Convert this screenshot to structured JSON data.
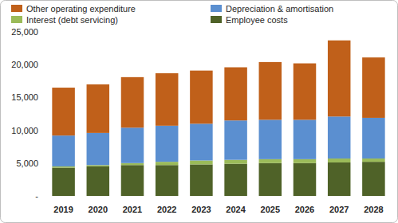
{
  "chart_data": {
    "type": "bar",
    "stacked": true,
    "grid": false,
    "legend": "top",
    "categories": [
      "2019",
      "2020",
      "2021",
      "2022",
      "2023",
      "2024",
      "2025",
      "2026",
      "2027",
      "2028"
    ],
    "series": [
      {
        "name": "Employee costs",
        "color": "#4f6228",
        "values": [
          4300,
          4500,
          4700,
          4700,
          4800,
          4900,
          5000,
          5000,
          5100,
          5200
        ]
      },
      {
        "name": "Interest (debt servicing)",
        "color": "#9bbb59",
        "values": [
          200,
          200,
          300,
          500,
          600,
          600,
          600,
          600,
          600,
          500
        ]
      },
      {
        "name": "Depreciation & amortisation",
        "color": "#5b8fd0",
        "values": [
          4700,
          4900,
          5400,
          5500,
          5600,
          6000,
          6000,
          6000,
          6400,
          6200
        ]
      },
      {
        "name": "Other operating expenditure",
        "color": "#c0601a",
        "values": [
          7300,
          7400,
          7700,
          8000,
          8100,
          8100,
          8800,
          8600,
          11600,
          9200
        ]
      }
    ],
    "ylim": [
      0,
      25000
    ],
    "yticks": [
      {
        "value": 0,
        "label": "-"
      },
      {
        "value": 5000,
        "label": "5,000"
      },
      {
        "value": 10000,
        "label": "10,000"
      },
      {
        "value": 15000,
        "label": "15,000"
      },
      {
        "value": 20000,
        "label": "20,000"
      },
      {
        "value": 25000,
        "label": "25,000"
      }
    ]
  }
}
